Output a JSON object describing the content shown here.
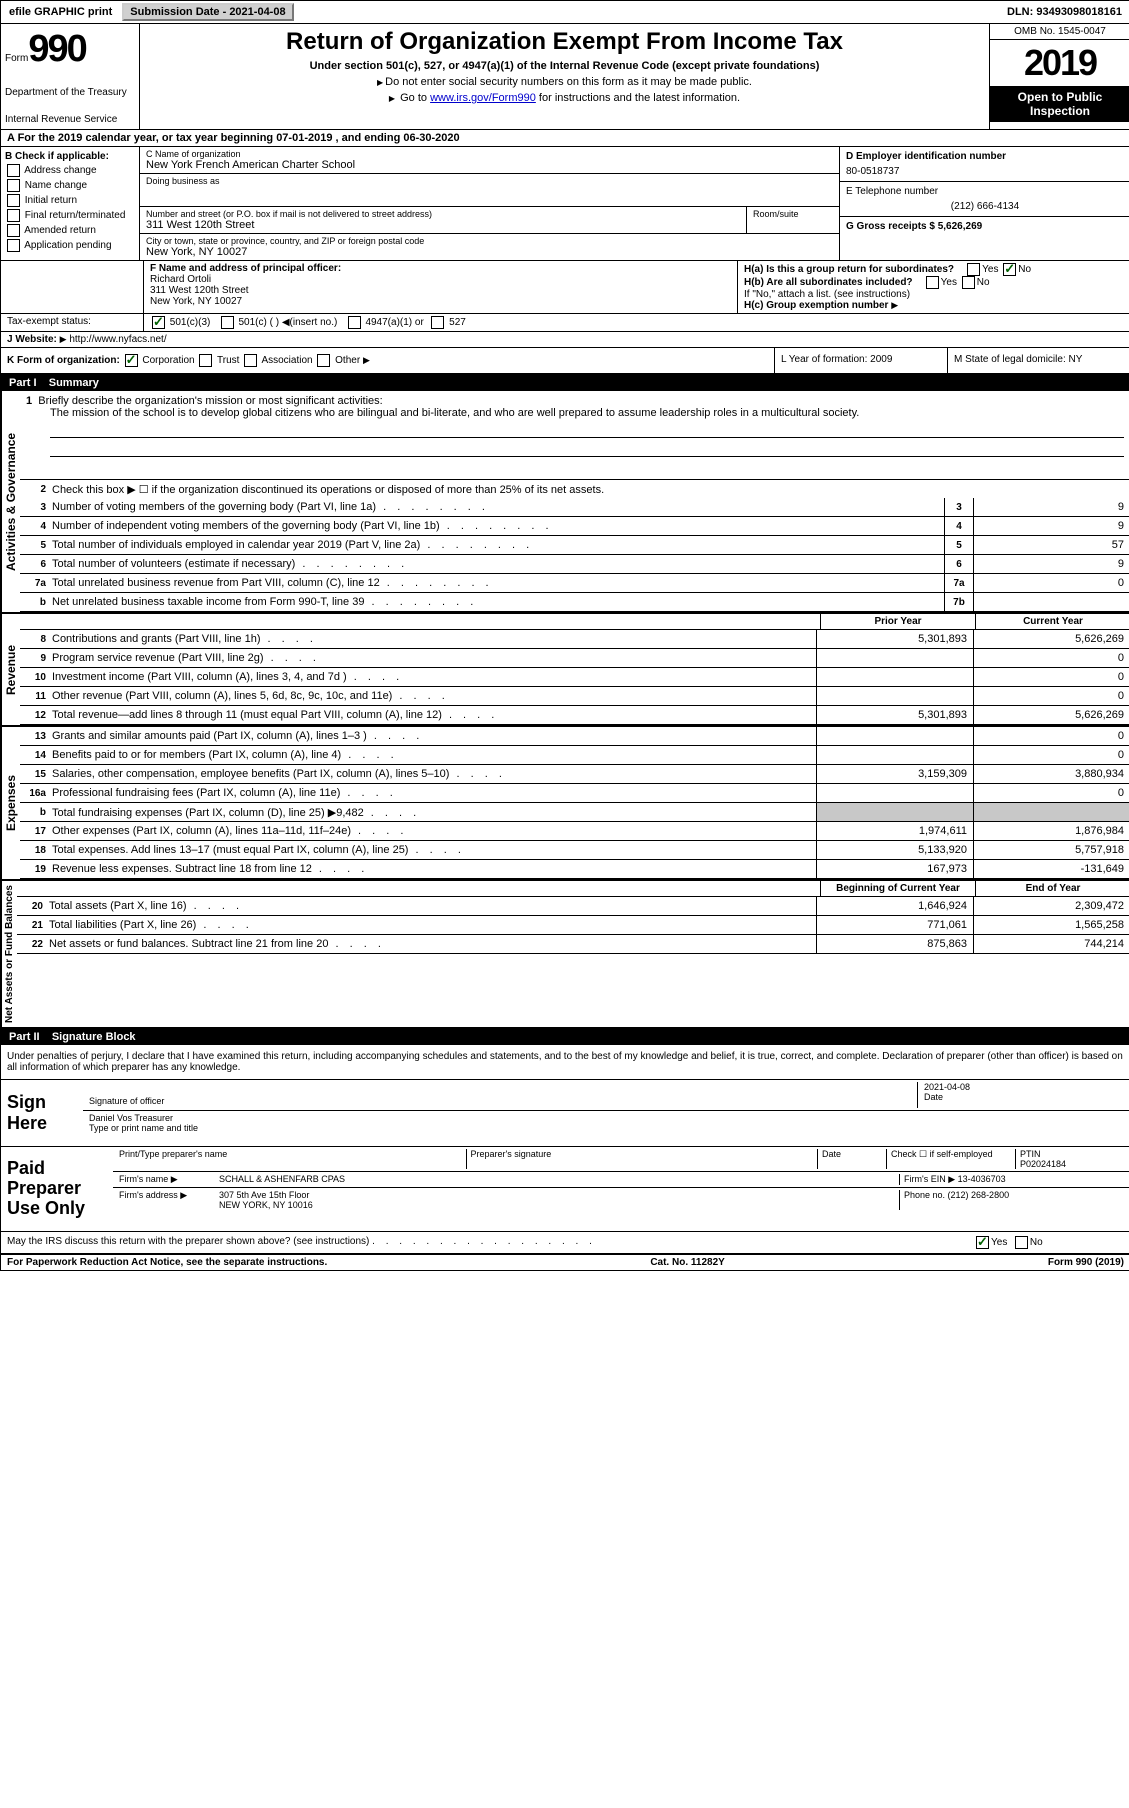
{
  "topbar": {
    "efile": "efile GRAPHIC print",
    "submission_label": "Submission Date - 2021-04-08",
    "dln": "DLN: 93493098018161"
  },
  "header": {
    "form_label": "Form",
    "form_number": "990",
    "dept_1": "Department of the Treasury",
    "dept_2": "Internal Revenue Service",
    "title": "Return of Organization Exempt From Income Tax",
    "subtitle": "Under section 501(c), 527, or 4947(a)(1) of the Internal Revenue Code (except private foundations)",
    "note1": "Do not enter social security numbers on this form as it may be made public.",
    "note2_pre": "Go to ",
    "note2_link": "www.irs.gov/Form990",
    "note2_post": " for instructions and the latest information.",
    "omb": "OMB No. 1545-0047",
    "year": "2019",
    "inspection": "Open to Public Inspection"
  },
  "row_a": "A For the 2019 calendar year, or tax year beginning 07-01-2019   , and ending 06-30-2020",
  "section_b": {
    "label": "B Check if applicable:",
    "items": [
      "Address change",
      "Name change",
      "Initial return",
      "Final return/terminated",
      "Amended return",
      "Application pending"
    ]
  },
  "section_c": {
    "name_label": "C Name of organization",
    "name": "New York French American Charter School",
    "dba_label": "Doing business as",
    "dba": "",
    "street_label": "Number and street (or P.O. box if mail is not delivered to street address)",
    "room_label": "Room/suite",
    "street": "311 West 120th Street",
    "city_label": "City or town, state or province, country, and ZIP or foreign postal code",
    "city": "New York, NY  10027"
  },
  "section_d": {
    "ein_label": "D Employer identification number",
    "ein": "80-0518737",
    "phone_label": "E Telephone number",
    "phone": "(212) 666-4134",
    "gross_label": "G Gross receipts $ 5,626,269"
  },
  "section_f": {
    "label": "F  Name and address of principal officer:",
    "name": "Richard Ortoli",
    "street": "311 West 120th Street",
    "city": "New York, NY  10027"
  },
  "section_h": {
    "ha": "H(a)  Is this a group return for subordinates?",
    "hb": "H(b)  Are all subordinates included?",
    "hb_note": "If \"No,\" attach a list. (see instructions)",
    "hc": "H(c)  Group exemption number",
    "yes": "Yes",
    "no": "No"
  },
  "tax_exempt": {
    "label": "Tax-exempt status:",
    "opt1": "501(c)(3)",
    "opt2": "501(c) (   )",
    "opt2_note": "(insert no.)",
    "opt3": "4947(a)(1) or",
    "opt4": "527"
  },
  "website": {
    "label": "J   Website:",
    "value": "http://www.nyfacs.net/"
  },
  "section_k": {
    "label": "K Form of organization:",
    "opts": [
      "Corporation",
      "Trust",
      "Association",
      "Other"
    ]
  },
  "section_l": {
    "label": "L Year of formation: 2009"
  },
  "section_m": {
    "label": "M State of legal domicile: NY"
  },
  "part1": {
    "header": "Part I",
    "title": "Summary",
    "vlabel_1": "Activities & Governance",
    "vlabel_2": "Revenue",
    "vlabel_3": "Expenses",
    "vlabel_4": "Net Assets or Fund Balances",
    "line1_label": "Briefly describe the organization's mission or most significant activities:",
    "mission": "The mission of the school is to develop global citizens who are bilingual and bi-literate, and who are well prepared to assume leadership roles in a multicultural society.",
    "line2": "Check this box ▶ ☐  if the organization discontinued its operations or disposed of more than 25% of its net assets.",
    "rows_ag": [
      {
        "n": "3",
        "t": "Number of voting members of the governing body (Part VI, line 1a)",
        "box": "3",
        "v": "9"
      },
      {
        "n": "4",
        "t": "Number of independent voting members of the governing body (Part VI, line 1b)",
        "box": "4",
        "v": "9"
      },
      {
        "n": "5",
        "t": "Total number of individuals employed in calendar year 2019 (Part V, line 2a)",
        "box": "5",
        "v": "57"
      },
      {
        "n": "6",
        "t": "Total number of volunteers (estimate if necessary)",
        "box": "6",
        "v": "9"
      },
      {
        "n": "7a",
        "t": "Total unrelated business revenue from Part VIII, column (C), line 12",
        "box": "7a",
        "v": "0"
      },
      {
        "n": "b",
        "t": "Net unrelated business taxable income from Form 990-T, line 39",
        "box": "7b",
        "v": ""
      }
    ],
    "col_prior": "Prior Year",
    "col_current": "Current Year",
    "rows_rev": [
      {
        "n": "8",
        "t": "Contributions and grants (Part VIII, line 1h)",
        "p": "5,301,893",
        "c": "5,626,269"
      },
      {
        "n": "9",
        "t": "Program service revenue (Part VIII, line 2g)",
        "p": "",
        "c": "0"
      },
      {
        "n": "10",
        "t": "Investment income (Part VIII, column (A), lines 3, 4, and 7d )",
        "p": "",
        "c": "0"
      },
      {
        "n": "11",
        "t": "Other revenue (Part VIII, column (A), lines 5, 6d, 8c, 9c, 10c, and 11e)",
        "p": "",
        "c": "0"
      },
      {
        "n": "12",
        "t": "Total revenue—add lines 8 through 11 (must equal Part VIII, column (A), line 12)",
        "p": "5,301,893",
        "c": "5,626,269"
      }
    ],
    "rows_exp": [
      {
        "n": "13",
        "t": "Grants and similar amounts paid (Part IX, column (A), lines 1–3 )",
        "p": "",
        "c": "0"
      },
      {
        "n": "14",
        "t": "Benefits paid to or for members (Part IX, column (A), line 4)",
        "p": "",
        "c": "0"
      },
      {
        "n": "15",
        "t": "Salaries, other compensation, employee benefits (Part IX, column (A), lines 5–10)",
        "p": "3,159,309",
        "c": "3,880,934"
      },
      {
        "n": "16a",
        "t": "Professional fundraising fees (Part IX, column (A), line 11e)",
        "p": "",
        "c": "0"
      },
      {
        "n": "b",
        "t": "Total fundraising expenses (Part IX, column (D), line 25) ▶9,482",
        "p": "shaded",
        "c": "shaded"
      },
      {
        "n": "17",
        "t": "Other expenses (Part IX, column (A), lines 11a–11d, 11f–24e)",
        "p": "1,974,611",
        "c": "1,876,984"
      },
      {
        "n": "18",
        "t": "Total expenses. Add lines 13–17 (must equal Part IX, column (A), line 25)",
        "p": "5,133,920",
        "c": "5,757,918"
      },
      {
        "n": "19",
        "t": "Revenue less expenses. Subtract line 18 from line 12",
        "p": "167,973",
        "c": "-131,649"
      }
    ],
    "col_begin": "Beginning of Current Year",
    "col_end": "End of Year",
    "rows_net": [
      {
        "n": "20",
        "t": "Total assets (Part X, line 16)",
        "p": "1,646,924",
        "c": "2,309,472"
      },
      {
        "n": "21",
        "t": "Total liabilities (Part X, line 26)",
        "p": "771,061",
        "c": "1,565,258"
      },
      {
        "n": "22",
        "t": "Net assets or fund balances. Subtract line 21 from line 20",
        "p": "875,863",
        "c": "744,214"
      }
    ]
  },
  "part2": {
    "header": "Part II",
    "title": "Signature Block",
    "declaration": "Under penalties of perjury, I declare that I have examined this return, including accompanying schedules and statements, and to the best of my knowledge and belief, it is true, correct, and complete. Declaration of preparer (other than officer) is based on all information of which preparer has any knowledge.",
    "sign_here": "Sign Here",
    "sig_officer": "Signature of officer",
    "sig_date": "2021-04-08",
    "date_label": "Date",
    "officer_name": "Daniel Vos  Treasurer",
    "type_label": "Type or print name and title",
    "paid": "Paid Preparer Use Only",
    "prep_name_label": "Print/Type preparer's name",
    "prep_sig_label": "Preparer's signature",
    "check_label": "Check ☐ if self-employed",
    "ptin_label": "PTIN",
    "ptin": "P02024184",
    "firm_name_label": "Firm's name   ▶",
    "firm_name": "SCHALL & ASHENFARB CPAS",
    "firm_ein_label": "Firm's EIN ▶ 13-4036703",
    "firm_addr_label": "Firm's address ▶",
    "firm_addr1": "307 5th Ave 15th Floor",
    "firm_addr2": "NEW YORK, NY  10016",
    "firm_phone": "Phone no. (212) 268-2800",
    "discuss": "May the IRS discuss this return with the preparer shown above? (see instructions)"
  },
  "footer": {
    "left": "For Paperwork Reduction Act Notice, see the separate instructions.",
    "mid": "Cat. No. 11282Y",
    "right": "Form 990 (2019)"
  }
}
